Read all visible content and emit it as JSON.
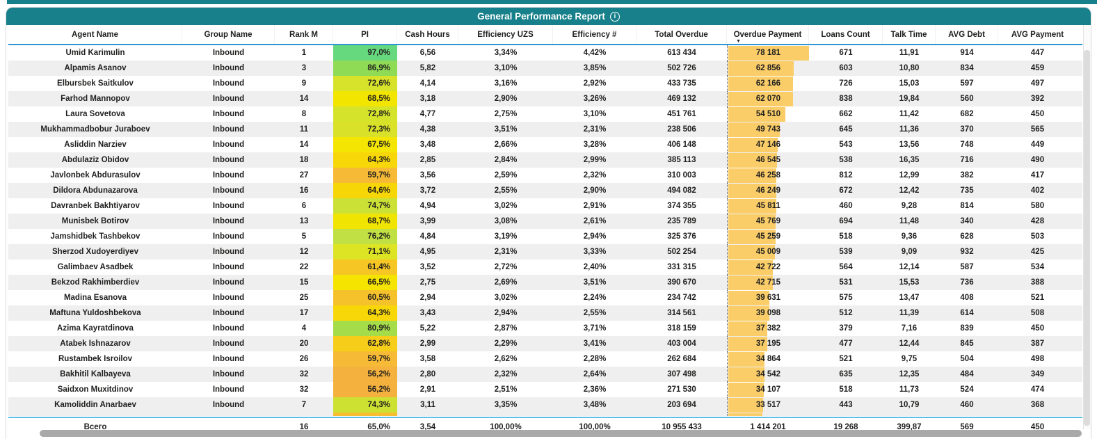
{
  "title": {
    "text": "General Performance Report"
  },
  "colors": {
    "teal_header": "#17808A",
    "header_underline_blue": "#2E97D3",
    "total_separator_blue": "#5BBDE8",
    "row_alt_gray": "#EFEFEF",
    "data_bar_orange": "#FACD69",
    "scrollbar_gray": "#A9A9A9"
  },
  "table": {
    "columns": [
      {
        "key": "agent",
        "label": "Agent Name"
      },
      {
        "key": "group",
        "label": "Group Name"
      },
      {
        "key": "rank",
        "label": "Rank M"
      },
      {
        "key": "pi",
        "label": "PI"
      },
      {
        "key": "cash",
        "label": "Cash Hours"
      },
      {
        "key": "eff_uzs",
        "label": "Efficiency UZS"
      },
      {
        "key": "eff_n",
        "label": "Efficiency #"
      },
      {
        "key": "overdue",
        "label": "Total Overdue"
      },
      {
        "key": "payment",
        "label": "Overdue Payment"
      },
      {
        "key": "loans",
        "label": "Loans Count"
      },
      {
        "key": "talk",
        "label": "Talk Time"
      },
      {
        "key": "debt",
        "label": "AVG Debt"
      },
      {
        "key": "pay",
        "label": "AVG Payment"
      }
    ],
    "sort": {
      "column": "payment",
      "direction": "desc",
      "icon": "sort-desc-arrow"
    },
    "rows": [
      {
        "agent": "Umid Karimulin",
        "group": "Inbound",
        "rank": "1",
        "pi": "97,0%",
        "pi_color": "#66D97E",
        "cash": "6,56",
        "eff_uzs": "3,34%",
        "eff_n": "4,42%",
        "overdue": "613 434",
        "payment": "78 181",
        "loans": "671",
        "talk": "11,91",
        "debt": "914",
        "pay": "447"
      },
      {
        "agent": "Alpamis Asanov",
        "group": "Inbound",
        "rank": "3",
        "pi": "86,9%",
        "pi_color": "#90DB55",
        "cash": "5,82",
        "eff_uzs": "3,10%",
        "eff_n": "3,85%",
        "overdue": "502 726",
        "payment": "62 856",
        "loans": "603",
        "talk": "10,80",
        "debt": "834",
        "pay": "459"
      },
      {
        "agent": "Elbursbek Saitkulov",
        "group": "Inbound",
        "rank": "9",
        "pi": "72,6%",
        "pi_color": "#D7E32A",
        "cash": "4,14",
        "eff_uzs": "3,16%",
        "eff_n": "2,92%",
        "overdue": "433 735",
        "payment": "62 166",
        "loans": "726",
        "talk": "15,03",
        "debt": "597",
        "pay": "497"
      },
      {
        "agent": "Farhod Mannopov",
        "group": "Inbound",
        "rank": "14",
        "pi": "68,5%",
        "pi_color": "#F2E500",
        "cash": "3,18",
        "eff_uzs": "2,90%",
        "eff_n": "3,26%",
        "overdue": "469 132",
        "payment": "62 070",
        "loans": "838",
        "talk": "19,84",
        "debt": "560",
        "pay": "392"
      },
      {
        "agent": "Laura Sovetova",
        "group": "Inbound",
        "rank": "8",
        "pi": "72,8%",
        "pi_color": "#D6E32B",
        "cash": "4,77",
        "eff_uzs": "2,75%",
        "eff_n": "3,10%",
        "overdue": "451 761",
        "payment": "54 510",
        "loans": "662",
        "talk": "11,42",
        "debt": "682",
        "pay": "450"
      },
      {
        "agent": "Mukhammadbobur Juraboev",
        "group": "Inbound",
        "rank": "11",
        "pi": "72,3%",
        "pi_color": "#D9E229",
        "cash": "4,38",
        "eff_uzs": "3,51%",
        "eff_n": "2,31%",
        "overdue": "238 506",
        "payment": "49 743",
        "loans": "645",
        "talk": "11,36",
        "debt": "370",
        "pay": "565"
      },
      {
        "agent": "Asliddin Narziev",
        "group": "Inbound",
        "rank": "14",
        "pi": "67,5%",
        "pi_color": "#F4E502",
        "cash": "3,48",
        "eff_uzs": "2,66%",
        "eff_n": "3,28%",
        "overdue": "406 148",
        "payment": "47 146",
        "loans": "543",
        "talk": "13,56",
        "debt": "748",
        "pay": "449"
      },
      {
        "agent": "Abdulaziz Obidov",
        "group": "Inbound",
        "rank": "18",
        "pi": "64,3%",
        "pi_color": "#F7D708",
        "cash": "2,85",
        "eff_uzs": "2,84%",
        "eff_n": "2,99%",
        "overdue": "385 113",
        "payment": "46 545",
        "loans": "538",
        "talk": "16,35",
        "debt": "716",
        "pay": "490"
      },
      {
        "agent": "Javlonbek Abdurasulov",
        "group": "Inbound",
        "rank": "27",
        "pi": "59,7%",
        "pi_color": "#F6BA36",
        "cash": "3,56",
        "eff_uzs": "2,59%",
        "eff_n": "2,32%",
        "overdue": "310 003",
        "payment": "46 258",
        "loans": "812",
        "talk": "12,99",
        "debt": "382",
        "pay": "417"
      },
      {
        "agent": "Dildora Abdunazarova",
        "group": "Inbound",
        "rank": "16",
        "pi": "64,6%",
        "pi_color": "#F7D607",
        "cash": "3,72",
        "eff_uzs": "2,55%",
        "eff_n": "2,90%",
        "overdue": "494 082",
        "payment": "46 249",
        "loans": "672",
        "talk": "12,42",
        "debt": "735",
        "pay": "402"
      },
      {
        "agent": "Davranbek Bakhtiyarov",
        "group": "Inbound",
        "rank": "6",
        "pi": "74,7%",
        "pi_color": "#CCE135",
        "cash": "4,94",
        "eff_uzs": "3,02%",
        "eff_n": "2,91%",
        "overdue": "374 355",
        "payment": "45 811",
        "loans": "460",
        "talk": "9,28",
        "debt": "814",
        "pay": "580"
      },
      {
        "agent": "Munisbek Botirov",
        "group": "Inbound",
        "rank": "13",
        "pi": "68,7%",
        "pi_color": "#F0E402",
        "cash": "3,99",
        "eff_uzs": "3,08%",
        "eff_n": "2,61%",
        "overdue": "235 789",
        "payment": "45 769",
        "loans": "694",
        "talk": "11,48",
        "debt": "340",
        "pay": "428"
      },
      {
        "agent": "Jamshidbek Tashbekov",
        "group": "Inbound",
        "rank": "5",
        "pi": "76,2%",
        "pi_color": "#C0E043",
        "cash": "4,84",
        "eff_uzs": "3,19%",
        "eff_n": "2,94%",
        "overdue": "325 376",
        "payment": "45 259",
        "loans": "518",
        "talk": "9,36",
        "debt": "628",
        "pay": "503"
      },
      {
        "agent": "Sherzod Xudoyerdiyev",
        "group": "Inbound",
        "rank": "12",
        "pi": "71,1%",
        "pi_color": "#DDE424",
        "cash": "4,95",
        "eff_uzs": "2,31%",
        "eff_n": "3,33%",
        "overdue": "502 254",
        "payment": "45 009",
        "loans": "539",
        "talk": "9,09",
        "debt": "932",
        "pay": "425"
      },
      {
        "agent": "Galimbaev Asadbek",
        "group": "Inbound",
        "rank": "22",
        "pi": "61,4%",
        "pi_color": "#F6C724",
        "cash": "3,52",
        "eff_uzs": "2,72%",
        "eff_n": "2,40%",
        "overdue": "331 315",
        "payment": "42 722",
        "loans": "564",
        "talk": "12,14",
        "debt": "587",
        "pay": "534"
      },
      {
        "agent": "Bekzod Rakhimberdiev",
        "group": "Inbound",
        "rank": "15",
        "pi": "66,5%",
        "pi_color": "#F5E300",
        "cash": "2,75",
        "eff_uzs": "2,69%",
        "eff_n": "3,51%",
        "overdue": "390 670",
        "payment": "42 715",
        "loans": "531",
        "talk": "15,53",
        "debt": "736",
        "pay": "388"
      },
      {
        "agent": "Madina Esanova",
        "group": "Inbound",
        "rank": "25",
        "pi": "60,5%",
        "pi_color": "#F6C22C",
        "cash": "2,94",
        "eff_uzs": "3,02%",
        "eff_n": "2,24%",
        "overdue": "234 742",
        "payment": "39 631",
        "loans": "575",
        "talk": "13,47",
        "debt": "408",
        "pay": "521"
      },
      {
        "agent": "Maftuna Yuldoshbekova",
        "group": "Inbound",
        "rank": "17",
        "pi": "64,3%",
        "pi_color": "#F7D708",
        "cash": "3,43",
        "eff_uzs": "2,94%",
        "eff_n": "2,55%",
        "overdue": "314 561",
        "payment": "39 098",
        "loans": "512",
        "talk": "11,39",
        "debt": "614",
        "pay": "508"
      },
      {
        "agent": "Azima Kayratdinova",
        "group": "Inbound",
        "rank": "4",
        "pi": "80,9%",
        "pi_color": "#A5DD4A",
        "cash": "5,22",
        "eff_uzs": "2,87%",
        "eff_n": "3,71%",
        "overdue": "318 159",
        "payment": "37 382",
        "loans": "379",
        "talk": "7,16",
        "debt": "839",
        "pay": "450"
      },
      {
        "agent": "Atabek Ishnazarov",
        "group": "Inbound",
        "rank": "20",
        "pi": "62,8%",
        "pi_color": "#F6CD19",
        "cash": "2,99",
        "eff_uzs": "2,29%",
        "eff_n": "3,41%",
        "overdue": "403 004",
        "payment": "37 195",
        "loans": "477",
        "talk": "12,44",
        "debt": "845",
        "pay": "387"
      },
      {
        "agent": "Rustambek Isroilov",
        "group": "Inbound",
        "rank": "26",
        "pi": "59,7%",
        "pi_color": "#F6BA36",
        "cash": "3,58",
        "eff_uzs": "2,62%",
        "eff_n": "2,28%",
        "overdue": "262 684",
        "payment": "34 864",
        "loans": "521",
        "talk": "9,75",
        "debt": "504",
        "pay": "498"
      },
      {
        "agent": "Bakhitil Kalbayeva",
        "group": "Inbound",
        "rank": "32",
        "pi": "56,2%",
        "pi_color": "#F4B13E",
        "cash": "2,80",
        "eff_uzs": "2,32%",
        "eff_n": "2,64%",
        "overdue": "307 498",
        "payment": "34 542",
        "loans": "635",
        "talk": "12,35",
        "debt": "484",
        "pay": "349"
      },
      {
        "agent": "Saidxon Muxitdinov",
        "group": "Inbound",
        "rank": "32",
        "pi": "56,2%",
        "pi_color": "#F4B13E",
        "cash": "2,91",
        "eff_uzs": "2,51%",
        "eff_n": "2,36%",
        "overdue": "271 530",
        "payment": "34 107",
        "loans": "518",
        "talk": "11,73",
        "debt": "524",
        "pay": "474"
      },
      {
        "agent": "Kamoliddin Anarbaev",
        "group": "Inbound",
        "rank": "7",
        "pi": "74,3%",
        "pi_color": "#CDE133",
        "cash": "3,11",
        "eff_uzs": "3,35%",
        "eff_n": "3,48%",
        "overdue": "203 694",
        "payment": "33 517",
        "loans": "443",
        "talk": "10,79",
        "debt": "460",
        "pay": "368"
      }
    ],
    "partial_next_row": {
      "pi_color": "#F6BE30",
      "payment": "33 000"
    },
    "total": {
      "agent": "Всего",
      "group": "",
      "rank": "16",
      "pi": "65,0%",
      "cash": "3,54",
      "eff_uzs": "100,00%",
      "eff_n": "100,00%",
      "overdue": "10 955 433",
      "payment": "1 414 201",
      "loans": "19 268",
      "talk": "399,87",
      "debt": "569",
      "pay": "450"
    }
  }
}
